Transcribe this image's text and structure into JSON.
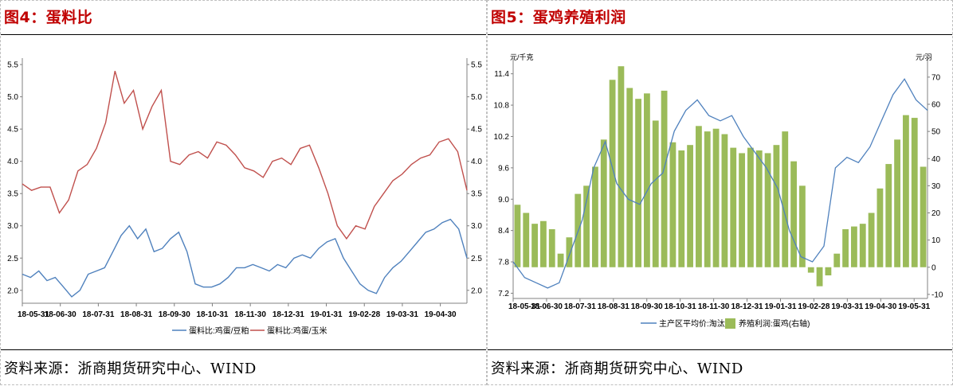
{
  "left_panel": {
    "title": "图4：蛋料比",
    "source": "资料来源：浙商期货研究中心、WIND"
  },
  "right_panel": {
    "title": "图5：蛋鸡养殖利润",
    "source": "资料来源：浙商期货研究中心、WIND"
  },
  "colors": {
    "title": "#c00000",
    "soymeal_line": "#4f81bd",
    "corn_line": "#c0504d",
    "price_line": "#4f81bd",
    "profit_bar": "#9bbb59"
  },
  "chart_data": [
    {
      "type": "line",
      "title": "",
      "x_ticks": [
        "18-05-31",
        "18-06-30",
        "18-07-31",
        "18-08-31",
        "18-09-30",
        "18-10-31",
        "18-11-30",
        "18-12-31",
        "19-01-31",
        "19-02-28",
        "19-03-31",
        "19-04-30"
      ],
      "ylim": [
        1.8,
        5.6
      ],
      "yticks": [
        "2.0",
        "2.5",
        "3.0",
        "3.5",
        "4.0",
        "4.5",
        "5.0",
        "5.5"
      ],
      "y2ticks": [
        "2.0",
        "2.5",
        "3.0",
        "3.5",
        "4.0",
        "4.5",
        "5.0",
        "5.5"
      ],
      "legend_position": "bottom",
      "series": [
        {
          "name": "蛋料比:鸡蛋/豆粕",
          "color": "#4f81bd",
          "values": [
            2.25,
            2.2,
            2.3,
            2.15,
            2.2,
            2.05,
            1.9,
            2.0,
            2.25,
            2.3,
            2.35,
            2.6,
            2.85,
            3.0,
            2.8,
            2.95,
            2.6,
            2.65,
            2.8,
            2.9,
            2.6,
            2.1,
            2.05,
            2.05,
            2.1,
            2.2,
            2.35,
            2.35,
            2.4,
            2.35,
            2.3,
            2.4,
            2.35,
            2.5,
            2.55,
            2.5,
            2.65,
            2.75,
            2.8,
            2.5,
            2.3,
            2.1,
            2.0,
            1.95,
            2.2,
            2.35,
            2.45,
            2.6,
            2.75,
            2.9,
            2.95,
            3.05,
            3.1,
            2.95,
            2.5
          ]
        },
        {
          "name": "蛋料比:鸡蛋/玉米",
          "color": "#c0504d",
          "values": [
            3.65,
            3.55,
            3.6,
            3.6,
            3.2,
            3.4,
            3.85,
            3.95,
            4.2,
            4.6,
            5.4,
            4.9,
            5.1,
            4.5,
            4.85,
            5.1,
            4.0,
            3.95,
            4.1,
            4.15,
            4.05,
            4.3,
            4.25,
            4.1,
            3.9,
            3.85,
            3.75,
            4.0,
            4.05,
            3.95,
            4.2,
            4.25,
            3.9,
            3.5,
            3.0,
            2.8,
            3.0,
            2.95,
            3.3,
            3.5,
            3.7,
            3.8,
            3.95,
            4.05,
            4.1,
            4.3,
            4.35,
            4.15,
            3.55
          ]
        }
      ]
    },
    {
      "type": "bar",
      "title": "",
      "x_ticks": [
        "18-05-31",
        "18-06-30",
        "18-07-31",
        "18-08-31",
        "18-09-30",
        "18-10-31",
        "18-11-30",
        "18-12-31",
        "19-01-31",
        "19-02-28",
        "19-03-31",
        "19-04-30",
        "19-05-31"
      ],
      "left_axis": {
        "unit": "元/千克",
        "ylim": [
          7.1,
          11.7
        ],
        "ticks": [
          "7.2",
          "7.8",
          "8.4",
          "9.0",
          "9.6",
          "10.2",
          "10.8",
          "11.4"
        ]
      },
      "right_axis": {
        "unit": "元/羽",
        "ylim": [
          -11.5,
          77
        ],
        "ticks": [
          "-10",
          "0",
          "10",
          "20",
          "30",
          "40",
          "50",
          "60",
          "70"
        ]
      },
      "legend_position": "bottom",
      "series": [
        {
          "name": "主产区平均价:淘汰鸡",
          "type": "line",
          "axis": "left",
          "values": [
            7.8,
            7.5,
            7.4,
            7.3,
            7.4,
            8.0,
            8.6,
            9.6,
            10.1,
            9.3,
            9.0,
            8.9,
            9.3,
            9.5,
            10.3,
            10.7,
            10.9,
            10.6,
            10.5,
            10.6,
            10.2,
            9.9,
            9.6,
            9.2,
            8.4,
            7.9,
            7.8,
            8.1,
            9.6,
            9.8,
            9.7,
            10.0,
            10.5,
            11.0,
            11.3,
            10.9,
            10.7
          ]
        },
        {
          "name": "养殖利润:蛋鸡(右轴)",
          "type": "bar",
          "axis": "right",
          "values": [
            23,
            20,
            16,
            17,
            14,
            5,
            11,
            27,
            30,
            37,
            47,
            69,
            74,
            66,
            62,
            64,
            54,
            65,
            46,
            43,
            45,
            52,
            50,
            51,
            49,
            44,
            42,
            44,
            43,
            42,
            45,
            50,
            39,
            30,
            -2,
            -7,
            -3,
            5,
            14,
            15,
            16,
            20,
            29,
            38,
            47,
            56,
            55,
            37
          ]
        }
      ]
    }
  ]
}
